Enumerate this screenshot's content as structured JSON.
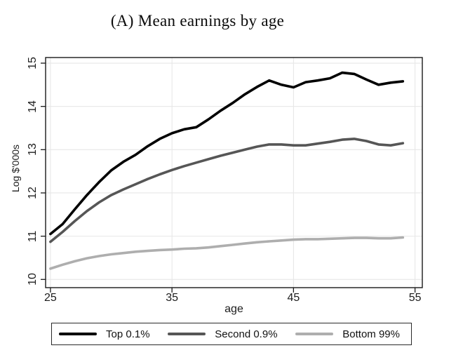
{
  "title": "(A) Mean earnings by age",
  "chart_data": {
    "type": "line",
    "title": "(A) Mean earnings by age",
    "xlabel": "age",
    "ylabel": "Log $'000s",
    "x": [
      25,
      26,
      27,
      28,
      29,
      30,
      31,
      32,
      33,
      34,
      35,
      36,
      37,
      38,
      39,
      40,
      41,
      42,
      43,
      44,
      45,
      46,
      47,
      48,
      49,
      50,
      51,
      52,
      53,
      54
    ],
    "series": [
      {
        "name": "Top 0.1%",
        "color": "#000000",
        "values": [
          11.05,
          11.28,
          11.62,
          11.95,
          12.25,
          12.52,
          12.72,
          12.88,
          13.08,
          13.25,
          13.38,
          13.47,
          13.52,
          13.7,
          13.9,
          14.08,
          14.28,
          14.45,
          14.6,
          14.5,
          14.44,
          14.56,
          14.6,
          14.65,
          14.78,
          14.75,
          14.62,
          14.5,
          14.55,
          14.58
        ]
      },
      {
        "name": "Second 0.9%",
        "color": "#565656",
        "values": [
          10.87,
          11.1,
          11.35,
          11.58,
          11.78,
          11.95,
          12.08,
          12.2,
          12.32,
          12.43,
          12.53,
          12.62,
          12.7,
          12.78,
          12.86,
          12.93,
          13.0,
          13.07,
          13.12,
          13.12,
          13.1,
          13.1,
          13.14,
          13.18,
          13.23,
          13.25,
          13.2,
          13.12,
          13.1,
          13.15
        ]
      },
      {
        "name": "Bottom 99%",
        "color": "#aeaeae",
        "values": [
          10.25,
          10.34,
          10.42,
          10.49,
          10.54,
          10.58,
          10.61,
          10.64,
          10.66,
          10.68,
          10.69,
          10.71,
          10.72,
          10.74,
          10.77,
          10.8,
          10.83,
          10.86,
          10.88,
          10.9,
          10.92,
          10.93,
          10.93,
          10.94,
          10.95,
          10.96,
          10.96,
          10.95,
          10.95,
          10.97
        ]
      }
    ],
    "x_ticks": [
      25,
      35,
      45,
      55
    ],
    "y_ticks": [
      10,
      11,
      12,
      13,
      14,
      15
    ],
    "xlim": [
      24.6,
      55.6
    ],
    "ylim": [
      9.81,
      15.13
    ],
    "grid": true,
    "legend_position": "bottom",
    "colors": {
      "background": "#ffffff",
      "gridline": "#e7e7e7",
      "frame": "#1a1a1a",
      "tick_text": "#1c1c1c"
    }
  }
}
